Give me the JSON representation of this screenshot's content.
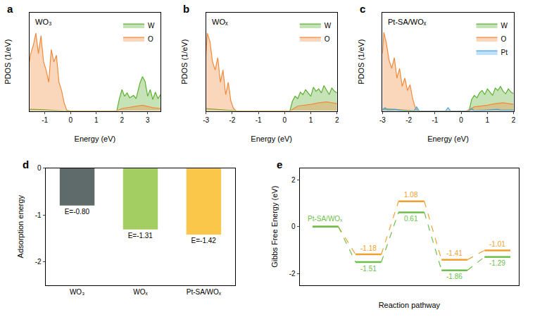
{
  "chart_data": [
    {
      "type": "area",
      "title": "a",
      "annotations": [
        "WO₃"
      ],
      "x_label": "Energy (eV)",
      "y_label": "PDOS (1/eV)",
      "xlim": [
        -1.6,
        3.5
      ],
      "xticks": [
        -1,
        0,
        1,
        2,
        3
      ],
      "ylim": [
        0,
        12
      ],
      "tick_labels": "x",
      "legend": "upper right",
      "series": [
        {
          "name": "W",
          "color": "#5cb030",
          "x": [
            -1.6,
            -1.0,
            -0.3,
            1.8,
            1.9,
            2.0,
            2.1,
            2.2,
            2.3,
            2.45,
            2.55,
            2.7,
            2.8,
            2.9,
            3.0,
            3.1,
            3.2,
            3.3,
            3.4,
            3.5
          ],
          "values": [
            0.2,
            0.15,
            0,
            0,
            1.5,
            2.6,
            1.8,
            2.2,
            1.6,
            1.9,
            1.5,
            3.4,
            4.2,
            3.6,
            1.8,
            2.6,
            1.4,
            2.3,
            1.5,
            2.0
          ]
        },
        {
          "name": "O",
          "color": "#f08a3c",
          "x": [
            -1.6,
            -1.55,
            -1.45,
            -1.35,
            -1.25,
            -1.15,
            -1.05,
            -0.95,
            -0.85,
            -0.75,
            -0.65,
            -0.55,
            -0.45,
            -0.35,
            -0.25,
            -0.15,
            0,
            1.8,
            2.0,
            2.4,
            2.8,
            3.2,
            3.5
          ],
          "values": [
            6,
            7,
            8,
            9.5,
            7,
            9.2,
            6,
            5,
            3.5,
            7.5,
            6,
            6.8,
            3.5,
            2.5,
            1,
            0.1,
            0,
            0,
            0.3,
            0.5,
            0.7,
            0.4,
            0.3
          ]
        }
      ]
    },
    {
      "type": "area",
      "title": "b",
      "annotations": [
        "WOₓ"
      ],
      "x_label": "Energy (eV)",
      "y_label": "PDOS (1/eV)",
      "xlim": [
        -3,
        2
      ],
      "xticks": [
        -3,
        -2,
        -1,
        0,
        1,
        2
      ],
      "ylim": [
        0,
        12
      ],
      "tick_labels": "x",
      "legend": "upper right",
      "series": [
        {
          "name": "W",
          "color": "#5cb030",
          "x": [
            -3,
            -2.5,
            -1.8,
            0.2,
            0.3,
            0.4,
            0.5,
            0.6,
            0.7,
            0.8,
            0.9,
            1.0,
            1.1,
            1.2,
            1.3,
            1.4,
            1.5,
            1.6,
            1.7,
            1.8,
            1.9,
            2.0
          ],
          "values": [
            0.3,
            0.2,
            0,
            0,
            1.2,
            1.8,
            1.5,
            2.3,
            2.0,
            2.6,
            2.2,
            1.8,
            2.9,
            2.4,
            2.7,
            2.2,
            3.1,
            2.5,
            2.0,
            2.8,
            2.4,
            2.2
          ]
        },
        {
          "name": "O",
          "color": "#f08a3c",
          "x": [
            -3,
            -2.95,
            -2.85,
            -2.75,
            -2.65,
            -2.55,
            -2.45,
            -2.35,
            -2.25,
            -2.15,
            -2.05,
            -1.95,
            -1.85,
            -1.75,
            0.2,
            0.5,
            1.0,
            1.3,
            1.6,
            2.0
          ],
          "values": [
            7,
            9.5,
            8.5,
            6,
            5,
            6.5,
            3.5,
            5,
            2,
            3.5,
            1.2,
            0.3,
            0,
            0,
            0,
            0.6,
            0.8,
            1.0,
            1.1,
            0.9
          ]
        }
      ]
    },
    {
      "type": "area",
      "title": "c",
      "annotations": [
        "Pt-SA/WOₓ"
      ],
      "x_label": "Energy (eV)",
      "y_label": "PDOS (1/eV)",
      "xlim": [
        -3,
        2
      ],
      "xticks": [
        -3,
        -2,
        -1,
        0,
        1,
        2
      ],
      "ylim": [
        0,
        12
      ],
      "tick_labels": "x",
      "legend": "upper right",
      "series": [
        {
          "name": "W",
          "color": "#5cb030",
          "x": [
            -3,
            -2.5,
            -1.7,
            0.3,
            0.4,
            0.5,
            0.6,
            0.7,
            0.8,
            0.9,
            1.0,
            1.1,
            1.2,
            1.3,
            1.4,
            1.5,
            1.6,
            1.7,
            1.8,
            1.9,
            2.0
          ],
          "values": [
            0.3,
            0.2,
            0,
            0,
            1.4,
            1.9,
            1.6,
            2.2,
            2.5,
            2.0,
            2.7,
            2.3,
            1.9,
            2.8,
            2.5,
            3.0,
            2.4,
            2.1,
            2.7,
            2.3,
            2.1
          ]
        },
        {
          "name": "O",
          "color": "#f08a3c",
          "x": [
            -3,
            -2.95,
            -2.85,
            -2.75,
            -2.65,
            -2.55,
            -2.45,
            -2.35,
            -2.25,
            -2.15,
            -2.05,
            -1.95,
            -1.85,
            -1.75,
            -1.65,
            0.2,
            0.5,
            1.0,
            1.3,
            1.6,
            2.0
          ],
          "values": [
            7,
            9.6,
            8.2,
            6.2,
            5.2,
            6.5,
            4,
            5.2,
            3,
            4,
            2.5,
            3.2,
            1.5,
            0.4,
            0,
            0,
            0.5,
            0.7,
            0.9,
            1.0,
            0.8
          ]
        },
        {
          "name": "Pt",
          "color": "#4aa3df",
          "x": [
            -3,
            -2.9,
            -2.8,
            -2.5,
            -2.4,
            -2.2,
            -1.8,
            -1.7,
            -1.6,
            -1.0,
            -0.6,
            -0.5,
            -0.4,
            0.3,
            0.4,
            0.5,
            1.0,
            1.4,
            1.5,
            2.0
          ],
          "values": [
            0.1,
            0.4,
            0.1,
            0.2,
            0.1,
            0,
            0,
            0.5,
            0,
            0,
            0,
            0.4,
            0,
            0,
            0.3,
            0,
            0.1,
            0.2,
            0.1,
            0.1
          ]
        }
      ]
    },
    {
      "type": "bar",
      "title": "d",
      "y_label": "Adsorption energy",
      "categories": [
        "WO₃",
        "WOₓ",
        "Pt-SA/WOₓ"
      ],
      "values": [
        -0.8,
        -1.31,
        -1.42
      ],
      "value_labels": [
        "E=-0.80",
        "E=-1.31",
        "E=-1.42"
      ],
      "data_labels": true,
      "colors": [
        "#5f6a6a",
        "#a3cf62",
        "#fbc74a"
      ],
      "ylim": [
        -2.5,
        0
      ],
      "yticks": [
        -2,
        -1,
        0
      ]
    },
    {
      "type": "step",
      "title": "e",
      "x_label": "Reaction pathway",
      "y_label": "Gibbs Free Energy (eV)",
      "x": [
        0,
        1,
        2,
        3,
        4
      ],
      "xlim": [
        -0.6,
        4.5
      ],
      "xticks": [],
      "ylim": [
        -2.5,
        2.5
      ],
      "yticks": [
        -2,
        0,
        2
      ],
      "tick_labels": "y",
      "data_labels": true,
      "line_style": "dashed",
      "series": [
        {
          "color": "#f0a030",
          "values": [
            0,
            -1.18,
            1.08,
            -1.41,
            -1.01
          ],
          "value_labels": [
            null,
            "-1.18",
            "1.08",
            "-1.41",
            "-1.01"
          ]
        },
        {
          "name": "Pt-SA/WOₓ",
          "color": "#6cc04a",
          "values": [
            0,
            -1.51,
            0.61,
            -1.86,
            -1.29
          ],
          "value_labels": [
            null,
            "-1.51",
            "0.61",
            "-1.86",
            "-1.29"
          ]
        }
      ]
    }
  ]
}
